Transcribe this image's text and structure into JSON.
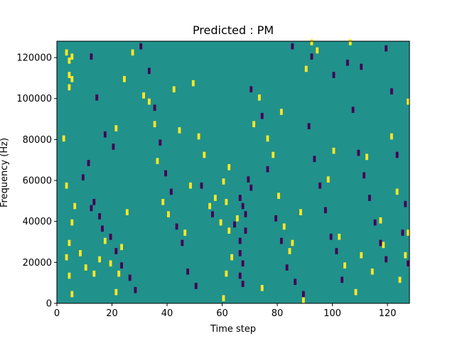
{
  "chart_data": {
    "type": "heatmap",
    "title": "Predicted : PM",
    "xlabel": "Time step",
    "ylabel": "Frequency (Hz)",
    "xlim": [
      0,
      128
    ],
    "ylim": [
      0,
      128000
    ],
    "x_ticks": [
      0,
      20,
      40,
      60,
      80,
      100,
      120
    ],
    "y_ticks": [
      0,
      20000,
      40000,
      60000,
      80000,
      100000,
      120000
    ],
    "x_tick_labels": [
      "0",
      "20",
      "40",
      "60",
      "80",
      "100",
      "120"
    ],
    "y_tick_labels": [
      "0",
      "20000",
      "40000",
      "60000",
      "80000",
      "100000",
      "120000"
    ],
    "grid": false,
    "colormap": "viridis",
    "colors": {
      "background": "#21918c",
      "high": "#fde725",
      "low": "#440154"
    },
    "bins": {
      "time_steps": 128,
      "freq_bins": 128,
      "freq_bin_hz": 1000
    },
    "background_value": 0,
    "value_legend": {
      "1": "high",
      "-1": "low"
    },
    "cells": [
      [
        3,
        123000,
        1
      ],
      [
        4,
        119000,
        1
      ],
      [
        5,
        121000,
        1
      ],
      [
        4,
        112000,
        1
      ],
      [
        5,
        110000,
        1
      ],
      [
        4,
        106000,
        1
      ],
      [
        2,
        81000,
        1
      ],
      [
        3,
        58000,
        1
      ],
      [
        6,
        48000,
        1
      ],
      [
        5,
        40000,
        1
      ],
      [
        4,
        30000,
        1
      ],
      [
        3,
        23000,
        1
      ],
      [
        4,
        14000,
        1
      ],
      [
        5,
        5000,
        1
      ],
      [
        8,
        25000,
        1
      ],
      [
        10,
        18000,
        1
      ],
      [
        13,
        15000,
        1
      ],
      [
        15,
        22000,
        1
      ],
      [
        17,
        31000,
        1
      ],
      [
        19,
        20000,
        1
      ],
      [
        21,
        6000,
        1
      ],
      [
        22,
        15000,
        1
      ],
      [
        23,
        28000,
        1
      ],
      [
        25,
        45000,
        1
      ],
      [
        27,
        123000,
        1
      ],
      [
        24,
        110000,
        1
      ],
      [
        21,
        86000,
        1
      ],
      [
        31,
        102000,
        1
      ],
      [
        33,
        99000,
        1
      ],
      [
        35,
        88000,
        1
      ],
      [
        36,
        70000,
        1
      ],
      [
        38,
        50000,
        1
      ],
      [
        40,
        44000,
        1
      ],
      [
        42,
        105000,
        1
      ],
      [
        44,
        85000,
        1
      ],
      [
        46,
        35000,
        1
      ],
      [
        48,
        58000,
        1
      ],
      [
        49,
        108000,
        1
      ],
      [
        51,
        82000,
        1
      ],
      [
        53,
        73000,
        1
      ],
      [
        55,
        48000,
        1
      ],
      [
        57,
        52000,
        1
      ],
      [
        59,
        40000,
        1
      ],
      [
        60,
        60000,
        1
      ],
      [
        61,
        50000,
        1
      ],
      [
        62,
        67000,
        1
      ],
      [
        61,
        15000,
        1
      ],
      [
        63,
        23000,
        1
      ],
      [
        65,
        42000,
        1
      ],
      [
        71,
        88000,
        1
      ],
      [
        73,
        101000,
        1
      ],
      [
        76,
        81000,
        1
      ],
      [
        78,
        73000,
        1
      ],
      [
        80,
        53000,
        1
      ],
      [
        81,
        94000,
        1
      ],
      [
        82,
        38000,
        1
      ],
      [
        84,
        26000,
        1
      ],
      [
        85,
        30000,
        1
      ],
      [
        88,
        45000,
        1
      ],
      [
        90,
        115000,
        1
      ],
      [
        92,
        128000,
        1
      ],
      [
        94,
        124000,
        1
      ],
      [
        98,
        61000,
        1
      ],
      [
        100,
        75000,
        1
      ],
      [
        102,
        33000,
        1
      ],
      [
        104,
        19000,
        1
      ],
      [
        106,
        128000,
        1
      ],
      [
        108,
        6000,
        1
      ],
      [
        110,
        24000,
        1
      ],
      [
        112,
        72000,
        1
      ],
      [
        114,
        16000,
        1
      ],
      [
        117,
        41000,
        1
      ],
      [
        118,
        29000,
        1
      ],
      [
        121,
        82000,
        1
      ],
      [
        123,
        55000,
        1
      ],
      [
        124,
        12000,
        1
      ],
      [
        126,
        24000,
        1
      ],
      [
        127,
        99000,
        1
      ],
      [
        127,
        35000,
        1
      ],
      [
        89,
        2000,
        1
      ],
      [
        74,
        8000,
        1
      ],
      [
        60,
        3000,
        1
      ],
      [
        62,
        36000,
        1
      ],
      [
        12,
        121000,
        -1
      ],
      [
        14,
        101000,
        -1
      ],
      [
        17,
        83000,
        -1
      ],
      [
        20,
        77000,
        -1
      ],
      [
        11,
        69000,
        -1
      ],
      [
        9,
        62000,
        -1
      ],
      [
        13,
        50000,
        -1
      ],
      [
        12,
        47000,
        -1
      ],
      [
        15,
        43000,
        -1
      ],
      [
        16,
        37000,
        -1
      ],
      [
        19,
        33000,
        -1
      ],
      [
        21,
        26000,
        -1
      ],
      [
        23,
        19000,
        -1
      ],
      [
        26,
        13000,
        -1
      ],
      [
        28,
        7000,
        -1
      ],
      [
        30,
        126000,
        -1
      ],
      [
        33,
        114000,
        -1
      ],
      [
        35,
        96000,
        -1
      ],
      [
        37,
        79000,
        -1
      ],
      [
        39,
        64000,
        -1
      ],
      [
        41,
        55000,
        -1
      ],
      [
        43,
        38000,
        -1
      ],
      [
        45,
        30000,
        -1
      ],
      [
        47,
        16000,
        -1
      ],
      [
        50,
        9000,
        -1
      ],
      [
        52,
        58000,
        -1
      ],
      [
        56,
        44000,
        -1
      ],
      [
        64,
        39000,
        -1
      ],
      [
        66,
        52000,
        -1
      ],
      [
        67,
        48000,
        -1
      ],
      [
        68,
        44000,
        -1
      ],
      [
        69,
        61000,
        -1
      ],
      [
        70,
        57000,
        -1
      ],
      [
        66,
        31000,
        -1
      ],
      [
        68,
        36000,
        -1
      ],
      [
        66,
        25000,
        -1
      ],
      [
        67,
        20000,
        -1
      ],
      [
        66,
        14000,
        -1
      ],
      [
        67,
        10000,
        -1
      ],
      [
        70,
        105000,
        -1
      ],
      [
        74,
        92000,
        -1
      ],
      [
        76,
        66000,
        -1
      ],
      [
        79,
        42000,
        -1
      ],
      [
        81,
        31000,
        -1
      ],
      [
        83,
        18000,
        -1
      ],
      [
        86,
        11000,
        -1
      ],
      [
        89,
        5000,
        -1
      ],
      [
        91,
        87000,
        -1
      ],
      [
        93,
        71000,
        -1
      ],
      [
        95,
        58000,
        -1
      ],
      [
        97,
        46000,
        -1
      ],
      [
        99,
        33000,
        -1
      ],
      [
        101,
        26000,
        -1
      ],
      [
        103,
        12000,
        -1
      ],
      [
        105,
        118000,
        -1
      ],
      [
        107,
        95000,
        -1
      ],
      [
        109,
        74000,
        -1
      ],
      [
        111,
        63000,
        -1
      ],
      [
        113,
        52000,
        -1
      ],
      [
        115,
        40000,
        -1
      ],
      [
        117,
        30000,
        -1
      ],
      [
        119,
        22000,
        -1
      ],
      [
        121,
        104000,
        -1
      ],
      [
        123,
        73000,
        -1
      ],
      [
        125,
        35000,
        -1
      ],
      [
        127,
        20000,
        -1
      ],
      [
        85,
        126000,
        -1
      ],
      [
        92,
        121000,
        -1
      ],
      [
        100,
        112000,
        -1
      ],
      [
        110,
        116000,
        -1
      ],
      [
        119,
        125000,
        -1
      ],
      [
        126,
        49000,
        -1
      ]
    ]
  }
}
